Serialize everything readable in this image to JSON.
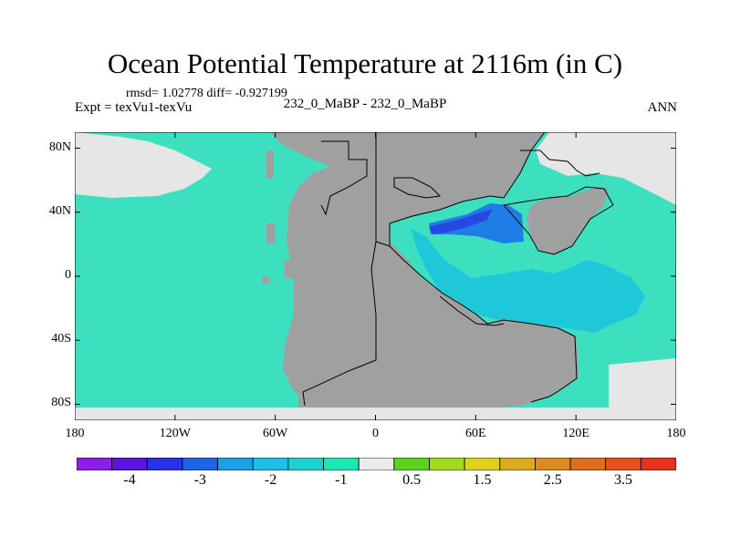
{
  "title": "Ocean Potential Temperature at 2116m (in C)",
  "stats_line": "rmsd= 1.02778  diff= -0.927199",
  "experiment_label": "Expt = texVu1-texVu",
  "case_label": "232_0_MaBP - 232_0_MaBP",
  "season": "ANN",
  "map": {
    "lat_ticks": [
      {
        "value": 80,
        "label": "80N"
      },
      {
        "value": 40,
        "label": "40N"
      },
      {
        "value": 0,
        "label": "0"
      },
      {
        "value": -40,
        "label": "40S"
      },
      {
        "value": -80,
        "label": "80S"
      }
    ],
    "lon_ticks": [
      {
        "value": -180,
        "label": "180"
      },
      {
        "value": -120,
        "label": "120W"
      },
      {
        "value": -60,
        "label": "60W"
      },
      {
        "value": 0,
        "label": "0"
      },
      {
        "value": 60,
        "label": "60E"
      },
      {
        "value": 120,
        "label": "120E"
      },
      {
        "value": 180,
        "label": "180"
      }
    ],
    "colors": {
      "land": "#a0a0a0",
      "near_zero": "#e6e6e6",
      "ocean_main": "#3ce0be",
      "cyan_anomaly": "#1fc8d8",
      "blue_anomaly": "#1e7ee6",
      "dark_blue_anomaly": "#2846e0",
      "outline": "#000000"
    }
  },
  "colorbar": {
    "colors": [
      "#8c1ee6",
      "#5a14dc",
      "#2832e6",
      "#1e64e6",
      "#1ea0e6",
      "#1ebee6",
      "#1ed2d2",
      "#1ee6b4",
      "#ebebeb",
      "#5ad21e",
      "#a0dc1e",
      "#dcd21e",
      "#dcaa1e",
      "#dc8c1e",
      "#dc6e1e",
      "#e6501e",
      "#e6321e"
    ],
    "labels": [
      {
        "value": "-4",
        "index": 1
      },
      {
        "value": "-3",
        "index": 3
      },
      {
        "value": "-2",
        "index": 5
      },
      {
        "value": "-1",
        "index": 7
      },
      {
        "value": "0.5",
        "index": 9
      },
      {
        "value": "1.5",
        "index": 11
      },
      {
        "value": "2.5",
        "index": 13
      },
      {
        "value": "3.5",
        "index": 15
      }
    ]
  }
}
